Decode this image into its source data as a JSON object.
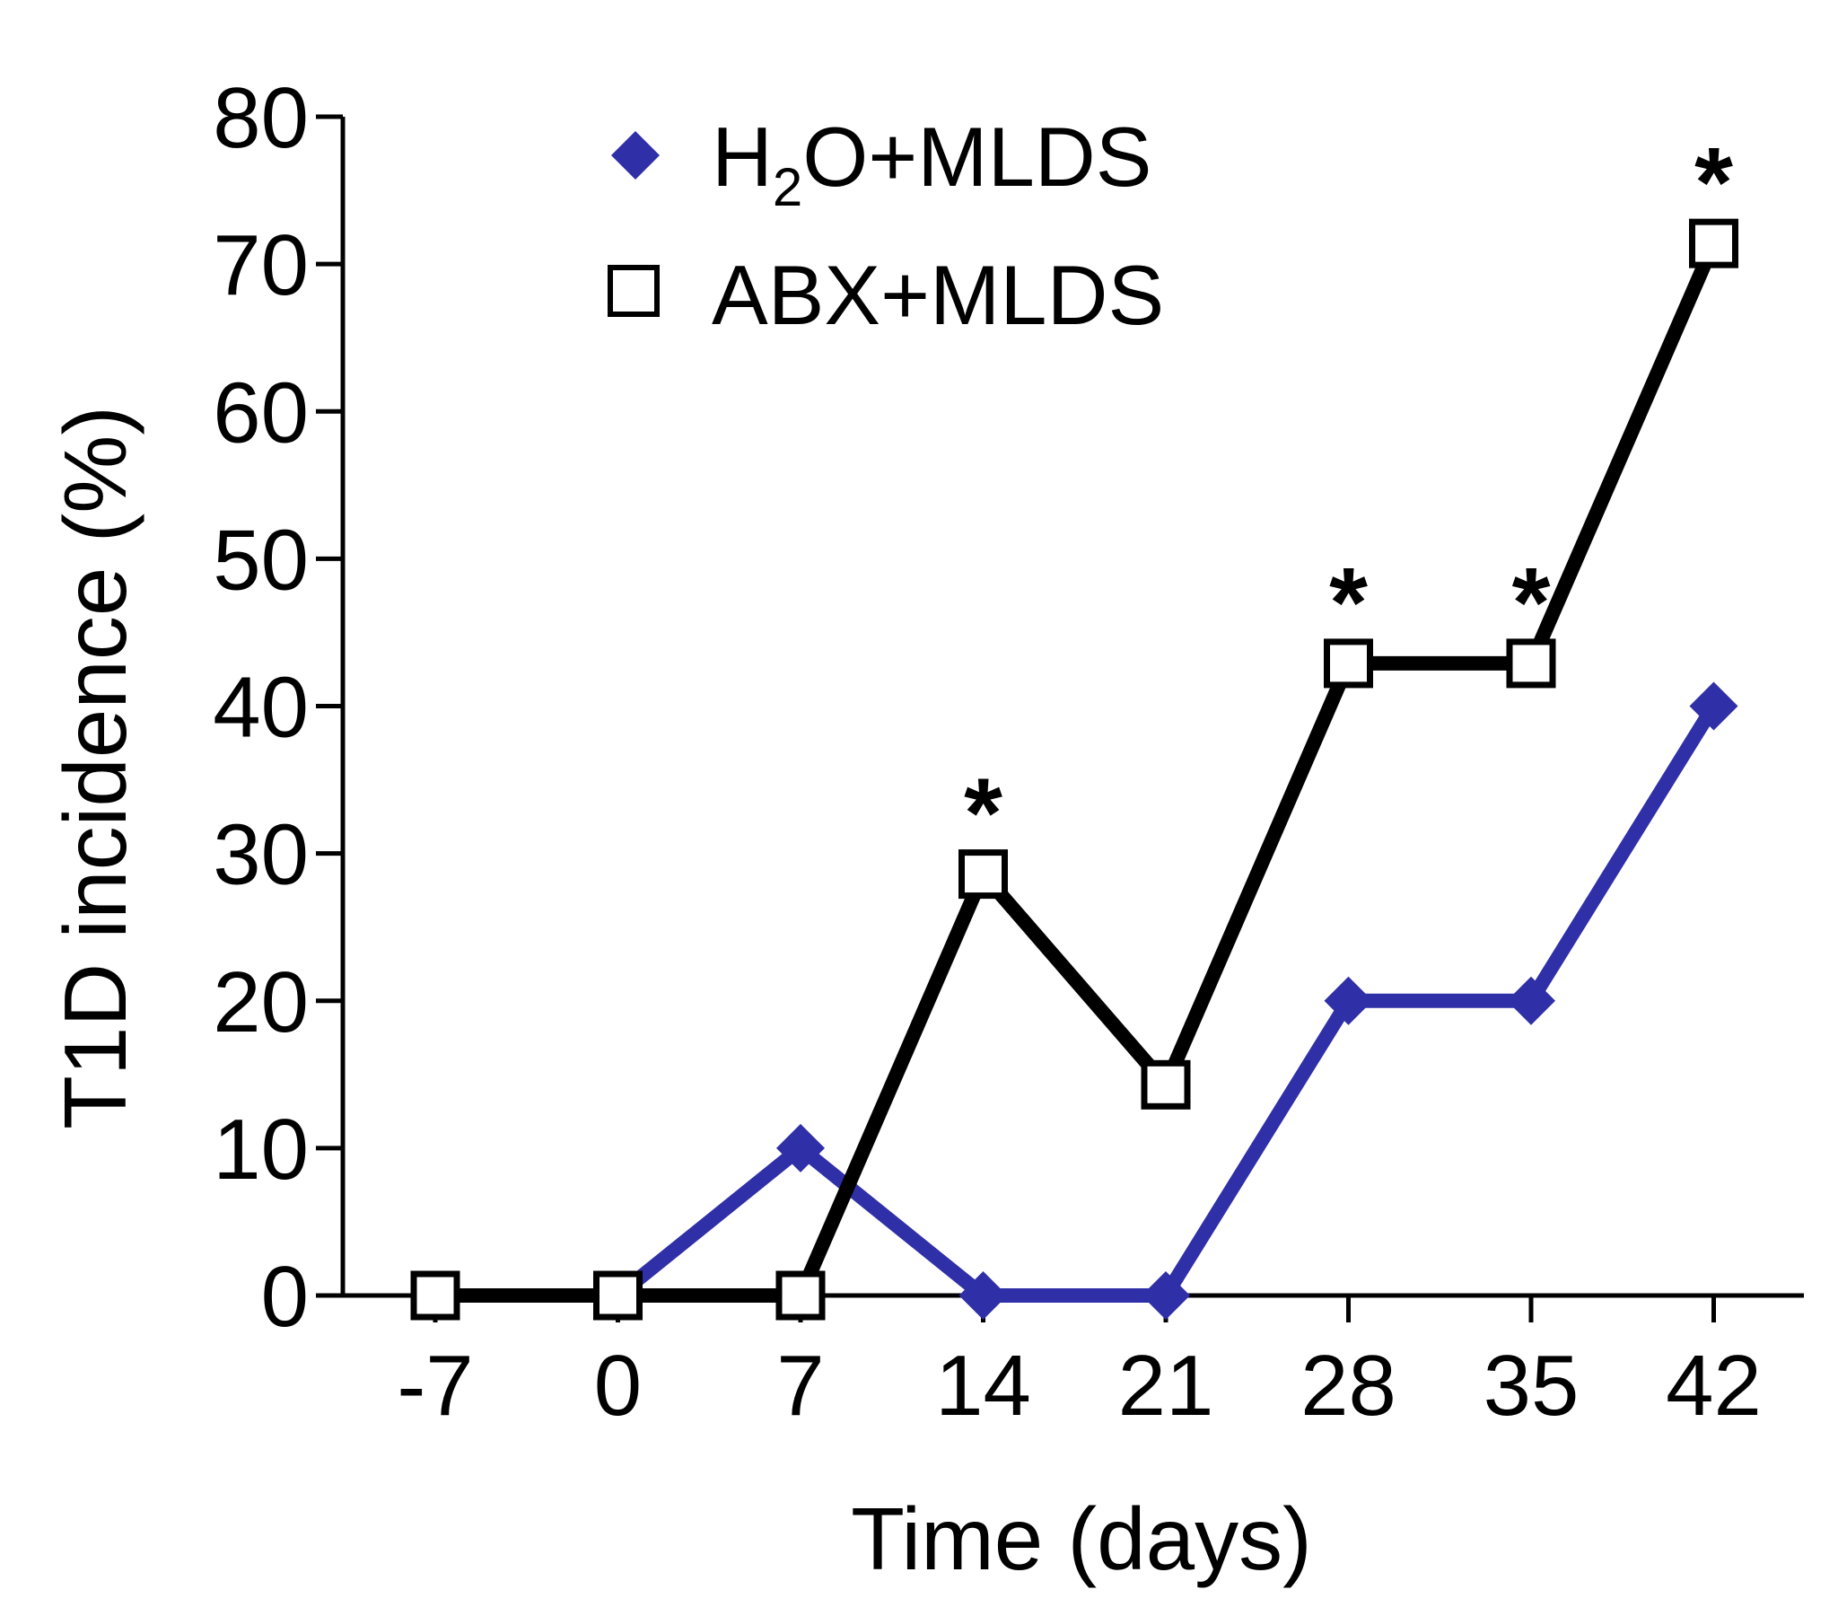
{
  "chart_data": {
    "type": "line",
    "title": "",
    "xlabel": "Time (days)",
    "ylabel": "T1D incidence (%)",
    "categories": [
      "-7",
      "0",
      "7",
      "14",
      "21",
      "28",
      "35",
      "42"
    ],
    "y_ticks": [
      "0",
      "10",
      "20",
      "30",
      "40",
      "50",
      "60",
      "70",
      "80"
    ],
    "ylim": [
      0,
      80
    ],
    "grid": false,
    "legend_position": "top",
    "series": [
      {
        "name": "H2O+MLDS",
        "legend_main": "H",
        "legend_sub": "2",
        "legend_rest": "O+MLDS",
        "marker": "diamond",
        "color": "#2f2fa8",
        "values": [
          0,
          0,
          10,
          0,
          0,
          20,
          20,
          40
        ]
      },
      {
        "name": "ABX+MLDS",
        "marker": "open-square",
        "color": "#000000",
        "values": [
          0,
          0,
          0,
          28.6,
          14.3,
          42.9,
          42.9,
          71.4
        ]
      }
    ],
    "annotations": [
      {
        "category": "14",
        "series": "ABX+MLDS",
        "text": "*"
      },
      {
        "category": "28",
        "series": "ABX+MLDS",
        "text": "*"
      },
      {
        "category": "35",
        "series": "ABX+MLDS",
        "text": "*"
      },
      {
        "category": "42",
        "series": "ABX+MLDS",
        "text": "*"
      }
    ]
  }
}
